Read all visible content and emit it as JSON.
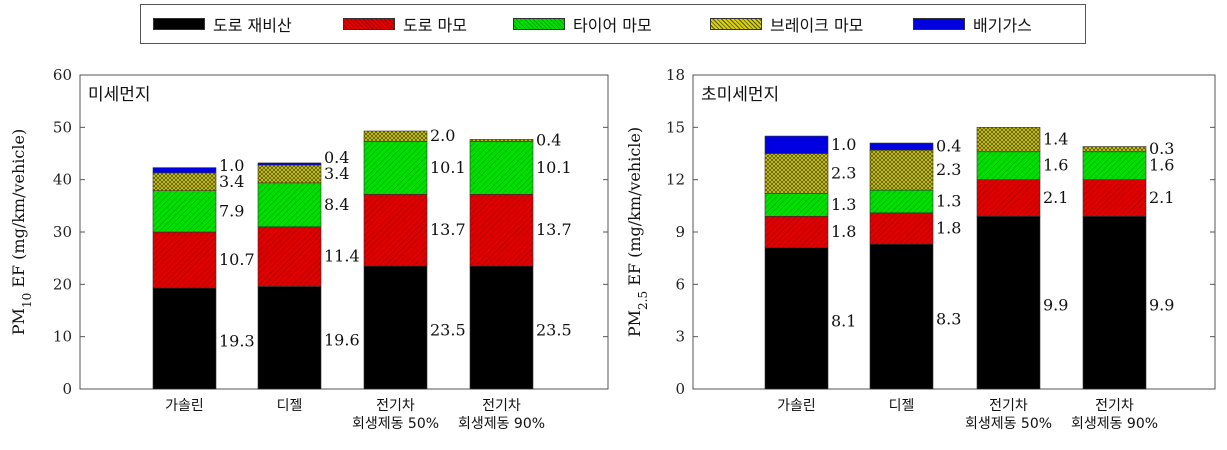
{
  "legend": [
    {
      "label": "도로 재비산",
      "color": "#000000",
      "pattern": "solid"
    },
    {
      "label": "도로 마모",
      "color": "#e00000",
      "pattern": "hatch"
    },
    {
      "label": "타이어 마모",
      "color": "#00e000",
      "pattern": "hatch"
    },
    {
      "label": "브레이크 마모",
      "color": "#c8c000",
      "pattern": "cross"
    },
    {
      "label": "배기가스",
      "color": "#0000e0",
      "pattern": "solid"
    }
  ],
  "chart_data": [
    {
      "type": "bar",
      "stacked": true,
      "title": "미세먼지",
      "ylabel_main": "PM",
      "ylabel_sub": "10",
      "ylabel_rest": " EF (mg/km/vehicle)",
      "ylim": [
        0,
        60
      ],
      "yticks": [
        0,
        10,
        20,
        30,
        40,
        50,
        60
      ],
      "categories": [
        [
          "가솔린"
        ],
        [
          "디젤"
        ],
        [
          "전기차",
          "회생제동 50%"
        ],
        [
          "전기차",
          "회생제동 90%"
        ]
      ],
      "series": [
        {
          "name": "도로 재비산",
          "values": [
            19.3,
            19.6,
            23.5,
            23.5
          ]
        },
        {
          "name": "도로 마모",
          "values": [
            10.7,
            11.4,
            13.7,
            13.7
          ]
        },
        {
          "name": "타이어 마모",
          "values": [
            7.9,
            8.4,
            10.1,
            10.1
          ]
        },
        {
          "name": "브레이크 마모",
          "values": [
            3.4,
            3.4,
            2.0,
            0.4
          ]
        },
        {
          "name": "배기가스",
          "values": [
            1.0,
            0.4,
            0,
            0
          ]
        }
      ],
      "data_labels": [
        [
          "19.3",
          "10.7",
          "7.9",
          "3.4",
          "1.0"
        ],
        [
          "19.6",
          "11.4",
          "8.4",
          "3.4",
          "0.4"
        ],
        [
          "23.5",
          "13.7",
          "10.1",
          "2.0",
          ""
        ],
        [
          "23.5",
          "13.7",
          "10.1",
          "0.4",
          ""
        ]
      ]
    },
    {
      "type": "bar",
      "stacked": true,
      "title": "초미세먼지",
      "ylabel_main": "PM",
      "ylabel_sub": "2.5",
      "ylabel_rest": " EF (mg/km/vehicle)",
      "ylim": [
        0,
        18
      ],
      "yticks": [
        0,
        3,
        6,
        9,
        12,
        15,
        18
      ],
      "categories": [
        [
          "가솔린"
        ],
        [
          "디젤"
        ],
        [
          "전기차",
          "회생제동 50%"
        ],
        [
          "전기차",
          "회생제동 90%"
        ]
      ],
      "series": [
        {
          "name": "도로 재비산",
          "values": [
            8.1,
            8.3,
            9.9,
            9.9
          ]
        },
        {
          "name": "도로 마모",
          "values": [
            1.8,
            1.8,
            2.1,
            2.1
          ]
        },
        {
          "name": "타이어 마모",
          "values": [
            1.3,
            1.3,
            1.6,
            1.6
          ]
        },
        {
          "name": "브레이크 마모",
          "values": [
            2.3,
            2.3,
            1.4,
            0.3
          ]
        },
        {
          "name": "배기가스",
          "values": [
            1.0,
            0.4,
            0,
            0
          ]
        }
      ],
      "data_labels": [
        [
          "8.1",
          "1.8",
          "1.3",
          "2.3",
          "1.0"
        ],
        [
          "8.3",
          "1.8",
          "1.3",
          "2.3",
          "0.4"
        ],
        [
          "9.9",
          "2.1",
          "1.6",
          "1.4",
          ""
        ],
        [
          "9.9",
          "2.1",
          "1.6",
          "0.3",
          ""
        ]
      ]
    }
  ]
}
